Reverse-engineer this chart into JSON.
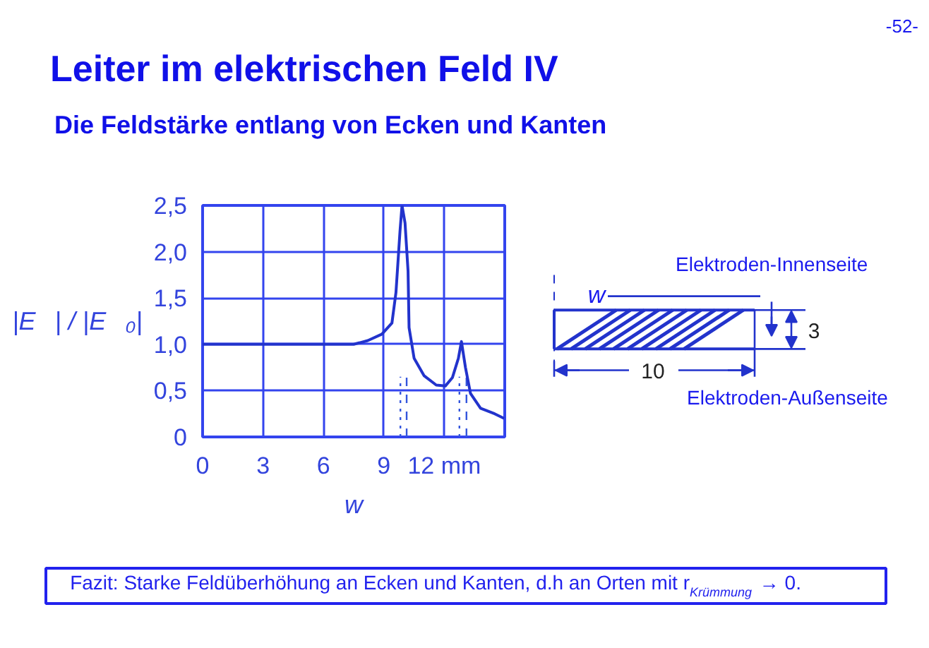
{
  "chart_data": {
    "type": "line",
    "title": "Leiter im elektrischen Feld IV",
    "subtitle": "Die Feldstärke entlang von Ecken und Kanten",
    "xlabel": "w",
    "ylabel": "|E⃗| / |E⃗₀|",
    "x": [
      0,
      7.5,
      8.2,
      8.9,
      9.4,
      9.6,
      9.8,
      9.9,
      10.05,
      10.2,
      10.25,
      10.5,
      11.0,
      11.6,
      12.05,
      12.4,
      12.7,
      12.85,
      13.05,
      13.3,
      13.8,
      14.5,
      14.97
    ],
    "series": [
      {
        "color": "#2233cc",
        "values": [
          1.0,
          1.0,
          1.04,
          1.11,
          1.23,
          1.56,
          2.22,
          2.5,
          2.31,
          1.79,
          1.18,
          0.85,
          0.66,
          0.56,
          0.55,
          0.64,
          0.85,
          1.03,
          0.75,
          0.47,
          0.31,
          0.25,
          0.2
        ]
      }
    ],
    "xlim": [
      0,
      15
    ],
    "ylim": [
      0,
      2.5
    ],
    "xticks": [
      0,
      3,
      6,
      9,
      {
        "value": 12,
        "label": "12 mm"
      }
    ],
    "yticks": [
      0,
      {
        "value": 0.5,
        "label": "0,5"
      },
      {
        "value": 1,
        "label": "1,0"
      },
      {
        "value": 1.5,
        "label": "1,5"
      },
      {
        "value": 2,
        "label": "2,0"
      },
      {
        "value": 2.5,
        "label": "2,5"
      }
    ],
    "grid": true,
    "line_style": "solid",
    "ref_lines": [
      {
        "axis": "x",
        "value": 9.82,
        "line_style": "dotted",
        "color": "#3355dd"
      },
      {
        "axis": "x",
        "value": 10.13,
        "line_style": "dashed",
        "color": "#3355dd"
      },
      {
        "axis": "x",
        "value": 12.75,
        "line_style": "dotted",
        "color": "#3355dd"
      },
      {
        "axis": "x",
        "value": 13.1,
        "line_style": "dashed",
        "color": "#3355dd"
      }
    ],
    "annotations": [
      "-52-",
      "Elektroden-Innenseite",
      "w",
      "3",
      "10",
      "Elektroden-Außenseite",
      "Fazit: Starke Feldüberhöhung an Ecken und Kanten, d.h an Orten mit r$_{Krümmung}$ → 0."
    ]
  }
}
